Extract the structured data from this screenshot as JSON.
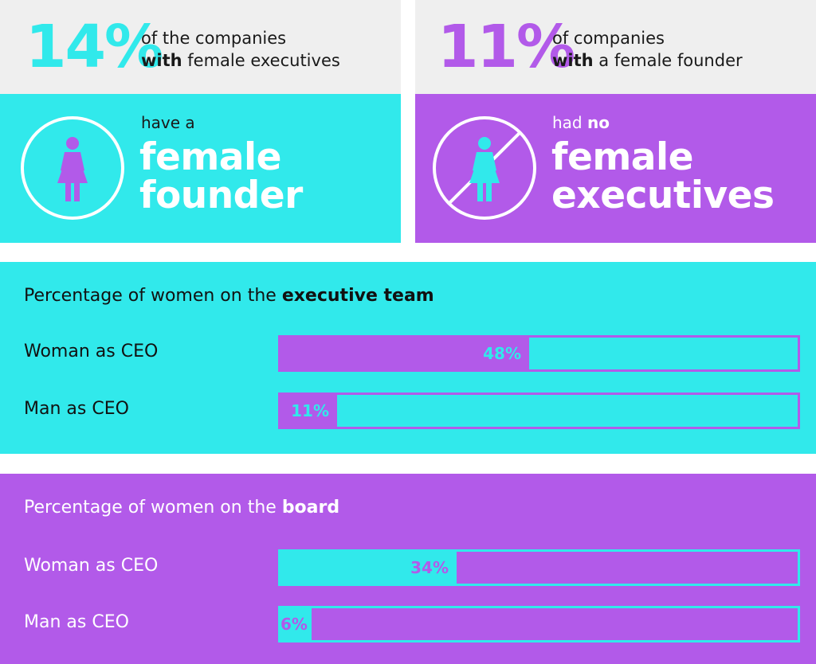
{
  "colors": {
    "cyan": "#31e9eb",
    "purple": "#b25ae9",
    "header_grey": "#efefef",
    "white": "#ffffff"
  },
  "stats": [
    {
      "percent": "14%",
      "desc_line1": "of the companies",
      "desc_line2_bold": "with",
      "desc_line2_rest": " female executives",
      "small_line": "have a",
      "small_line_bold": "",
      "headline_line1": "female",
      "headline_line2": "founder",
      "icon": "woman-icon",
      "accent": "#31e9eb"
    },
    {
      "percent": "11%",
      "desc_line1": "of companies",
      "desc_line2_bold": "with",
      "desc_line2_rest": " a female founder",
      "small_line": "had ",
      "small_line_bold": "no",
      "headline_line1": "female",
      "headline_line2": "executives",
      "icon": "no-woman-icon",
      "accent": "#b25ae9"
    }
  ],
  "chart_data": [
    {
      "type": "bar",
      "title_prefix": "Percentage of women on the ",
      "title_bold": "executive team",
      "categories": [
        "Woman as CEO",
        "Man as CEO"
      ],
      "values": [
        48,
        11
      ],
      "value_labels": [
        "48%",
        "11%"
      ],
      "ylim": [
        0,
        100
      ],
      "orientation": "horizontal"
    },
    {
      "type": "bar",
      "title_prefix": "Percentage of women on the ",
      "title_bold": "board",
      "categories": [
        "Woman as CEO",
        "Man as CEO"
      ],
      "values": [
        34,
        6
      ],
      "value_labels": [
        "34%",
        "6%"
      ],
      "ylim": [
        0,
        100
      ],
      "orientation": "horizontal"
    }
  ]
}
